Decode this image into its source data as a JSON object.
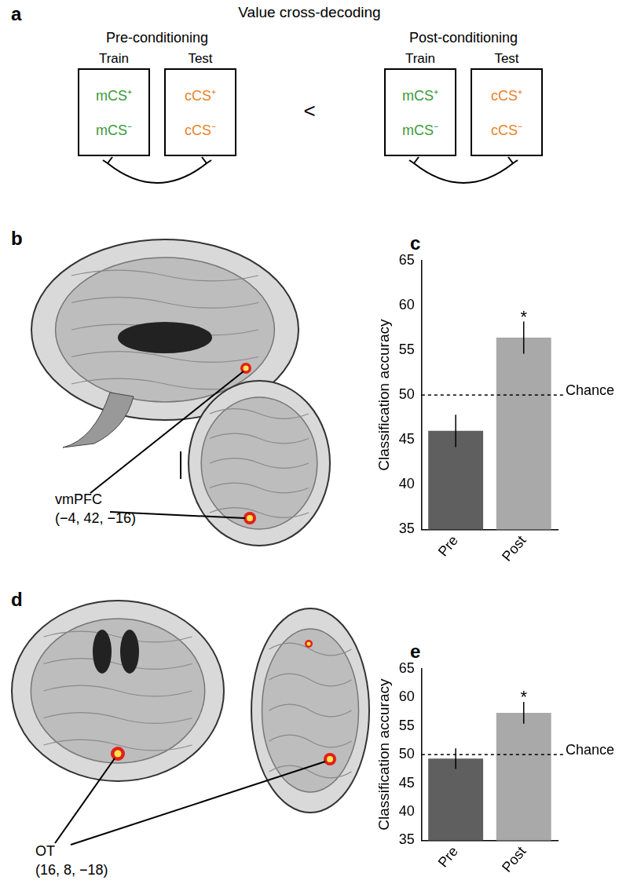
{
  "panel_a": {
    "label": "a",
    "title": "Value cross-decoding",
    "comparison": "<",
    "conditions": [
      {
        "title": "Pre-conditioning",
        "boxes": [
          {
            "header": "Train",
            "items": [
              "mCS⁺",
              "mCS⁻"
            ],
            "color": "#3a9a3a"
          },
          {
            "header": "Test",
            "items": [
              "cCS⁺",
              "cCS⁻"
            ],
            "color": "#e8832a"
          }
        ]
      },
      {
        "title": "Post-conditioning",
        "boxes": [
          {
            "header": "Train",
            "items": [
              "mCS⁺",
              "mCS⁻"
            ],
            "color": "#3a9a3a"
          },
          {
            "header": "Test",
            "items": [
              "cCS⁺",
              "cCS⁻"
            ],
            "color": "#e8832a"
          }
        ]
      }
    ]
  },
  "brain_panels": [
    {
      "label": "b",
      "region": "vmPFC",
      "coordinates": "(−4, 42, −16)"
    },
    {
      "label": "d",
      "region": "OT",
      "coordinates": "(16, 8, −18)"
    }
  ],
  "chart_data": [
    {
      "label": "c",
      "type": "bar",
      "categories": [
        "Pre",
        "Post"
      ],
      "values": [
        46,
        56.4
      ],
      "errors": [
        1.8,
        1.8
      ],
      "colors": [
        "#5f5f5f",
        "#a9a9a9"
      ],
      "ylim": [
        35,
        65
      ],
      "yticks": [
        35,
        40,
        45,
        50,
        55,
        60,
        65
      ],
      "y_label": "Classification accuracy",
      "grid": false,
      "reference_line": {
        "value": 50,
        "text": "Chance",
        "line_style": "dashed"
      },
      "markers": [
        {
          "category": "Post",
          "text": "*"
        }
      ]
    },
    {
      "label": "e",
      "type": "bar",
      "categories": [
        "Pre",
        "Post"
      ],
      "values": [
        49.3,
        57.3
      ],
      "errors": [
        1.8,
        1.9
      ],
      "colors": [
        "#5f5f5f",
        "#a9a9a9"
      ],
      "ylim": [
        35,
        65
      ],
      "yticks": [
        35,
        40,
        45,
        50,
        55,
        60,
        65
      ],
      "y_label": "Classification accuracy",
      "grid": false,
      "reference_line": {
        "value": 50,
        "text": "Chance",
        "line_style": "dashed"
      },
      "markers": [
        {
          "category": "Post",
          "text": "*"
        }
      ]
    }
  ]
}
